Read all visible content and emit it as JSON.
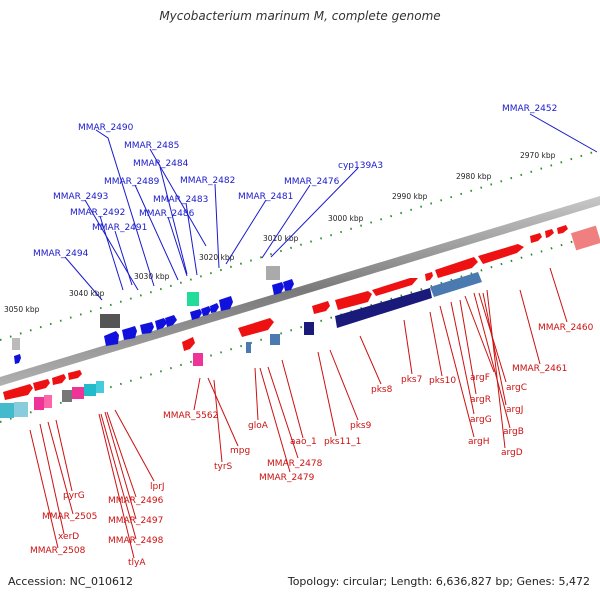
{
  "title": "Mycobacterium marinum M, complete genome",
  "footer": {
    "accession": "Accession: NC_010612",
    "topology": "Topology: circular; Length: 6,636,827 bp; Genes: 5,472"
  },
  "scale": [
    {
      "label": "2970 kbp",
      "kbp": 2970
    },
    {
      "label": "2980 kbp",
      "kbp": 2980
    },
    {
      "label": "2990 kbp",
      "kbp": 2990
    },
    {
      "label": "3000 kbp",
      "kbp": 3000
    },
    {
      "label": "3010 kbp",
      "kbp": 3010
    },
    {
      "label": "3020 kbp",
      "kbp": 3020
    },
    {
      "label": "3030 kbp",
      "kbp": 3030
    },
    {
      "label": "3040 kbp",
      "kbp": 3040
    },
    {
      "label": "3050 kbp",
      "kbp": 3050
    }
  ],
  "genes_blue": [
    {
      "name": "MMAR_2452"
    },
    {
      "name": "MMAR_2490"
    },
    {
      "name": "MMAR_2485"
    },
    {
      "name": "MMAR_2484"
    },
    {
      "name": "MMAR_2489"
    },
    {
      "name": "MMAR_2482"
    },
    {
      "name": "MMAR_2476"
    },
    {
      "name": "cyp139A3"
    },
    {
      "name": "MMAR_2493"
    },
    {
      "name": "MMAR_2483"
    },
    {
      "name": "MMAR_2481"
    },
    {
      "name": "MMAR_2492"
    },
    {
      "name": "MMAR_2486"
    },
    {
      "name": "MMAR_2491"
    },
    {
      "name": "MMAR_2494"
    }
  ],
  "genes_red": [
    {
      "name": "MMAR_2460"
    },
    {
      "name": "MMAR_2461"
    },
    {
      "name": "argC"
    },
    {
      "name": "argF"
    },
    {
      "name": "argJ"
    },
    {
      "name": "argR"
    },
    {
      "name": "argB"
    },
    {
      "name": "argG"
    },
    {
      "name": "argH"
    },
    {
      "name": "argD"
    },
    {
      "name": "pks7"
    },
    {
      "name": "pks10"
    },
    {
      "name": "pks8"
    },
    {
      "name": "pks9"
    },
    {
      "name": "pks11_1"
    },
    {
      "name": "aao_1"
    },
    {
      "name": "gloA"
    },
    {
      "name": "MMAR_2478"
    },
    {
      "name": "MMAR_2479"
    },
    {
      "name": "MMAR_5562"
    },
    {
      "name": "mpg"
    },
    {
      "name": "tyrS"
    },
    {
      "name": "lprJ"
    },
    {
      "name": "MMAR_2496"
    },
    {
      "name": "MMAR_2497"
    },
    {
      "name": "MMAR_2498"
    },
    {
      "name": "tlyA"
    },
    {
      "name": "pyrG"
    },
    {
      "name": "MMAR_2505"
    },
    {
      "name": "xerD"
    },
    {
      "name": "MMAR_2508"
    }
  ],
  "colors": {
    "forward": "#ee1111",
    "reverse": "#1111dd",
    "blue_label": "#1a1acc",
    "red_label": "#cc1111",
    "backbone": "#888888",
    "tick": "#2a8a2a"
  }
}
